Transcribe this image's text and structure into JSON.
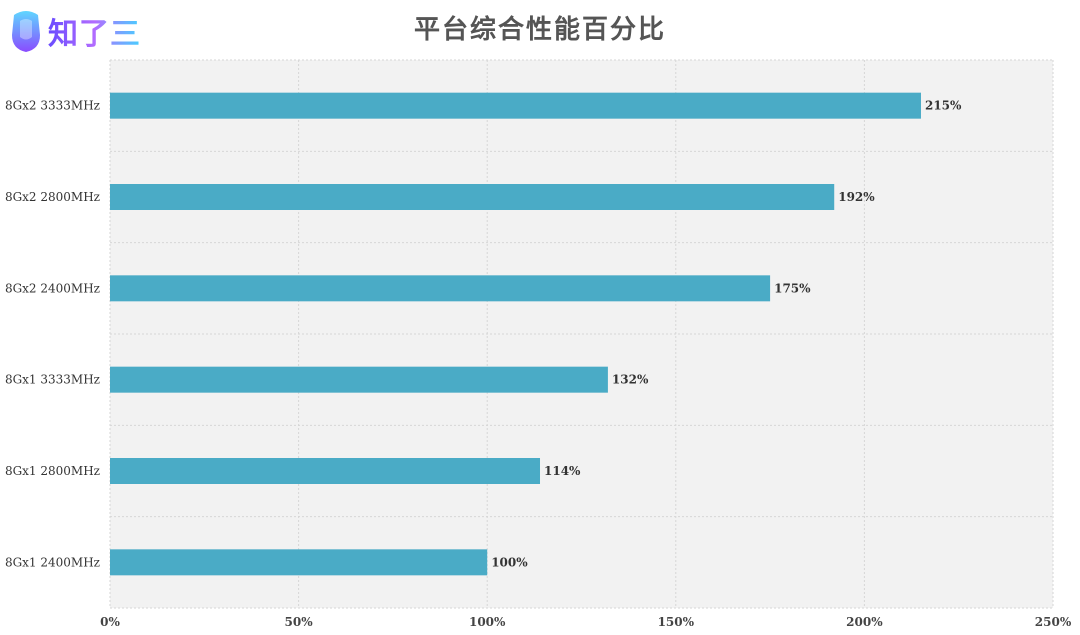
{
  "header": {
    "logo_text": "知了三",
    "title": "平台综合性能百分比"
  },
  "colors": {
    "bar": "#4aabc6",
    "plot_bg": "#f2f2f2",
    "grid": "#d6d6d6"
  },
  "chart_data": {
    "type": "bar",
    "orientation": "horizontal",
    "title": "平台综合性能百分比",
    "categories": [
      "8Gx2 3333MHz",
      "8Gx2 2800MHz",
      "8Gx2 2400MHz",
      "8Gx1 3333MHz",
      "8Gx1 2800MHz",
      "8Gx1 2400MHz"
    ],
    "values": [
      215,
      192,
      175,
      132,
      114,
      100
    ],
    "value_labels": [
      "215%",
      "192%",
      "175%",
      "132%",
      "114%",
      "100%"
    ],
    "xticks": [
      0,
      50,
      100,
      150,
      200,
      250
    ],
    "xtick_labels": [
      "0%",
      "50%",
      "100%",
      "150%",
      "200%",
      "250%"
    ],
    "xlim": [
      0,
      250
    ],
    "xlabel": "",
    "ylabel": "",
    "grid": true,
    "legend": "none"
  }
}
